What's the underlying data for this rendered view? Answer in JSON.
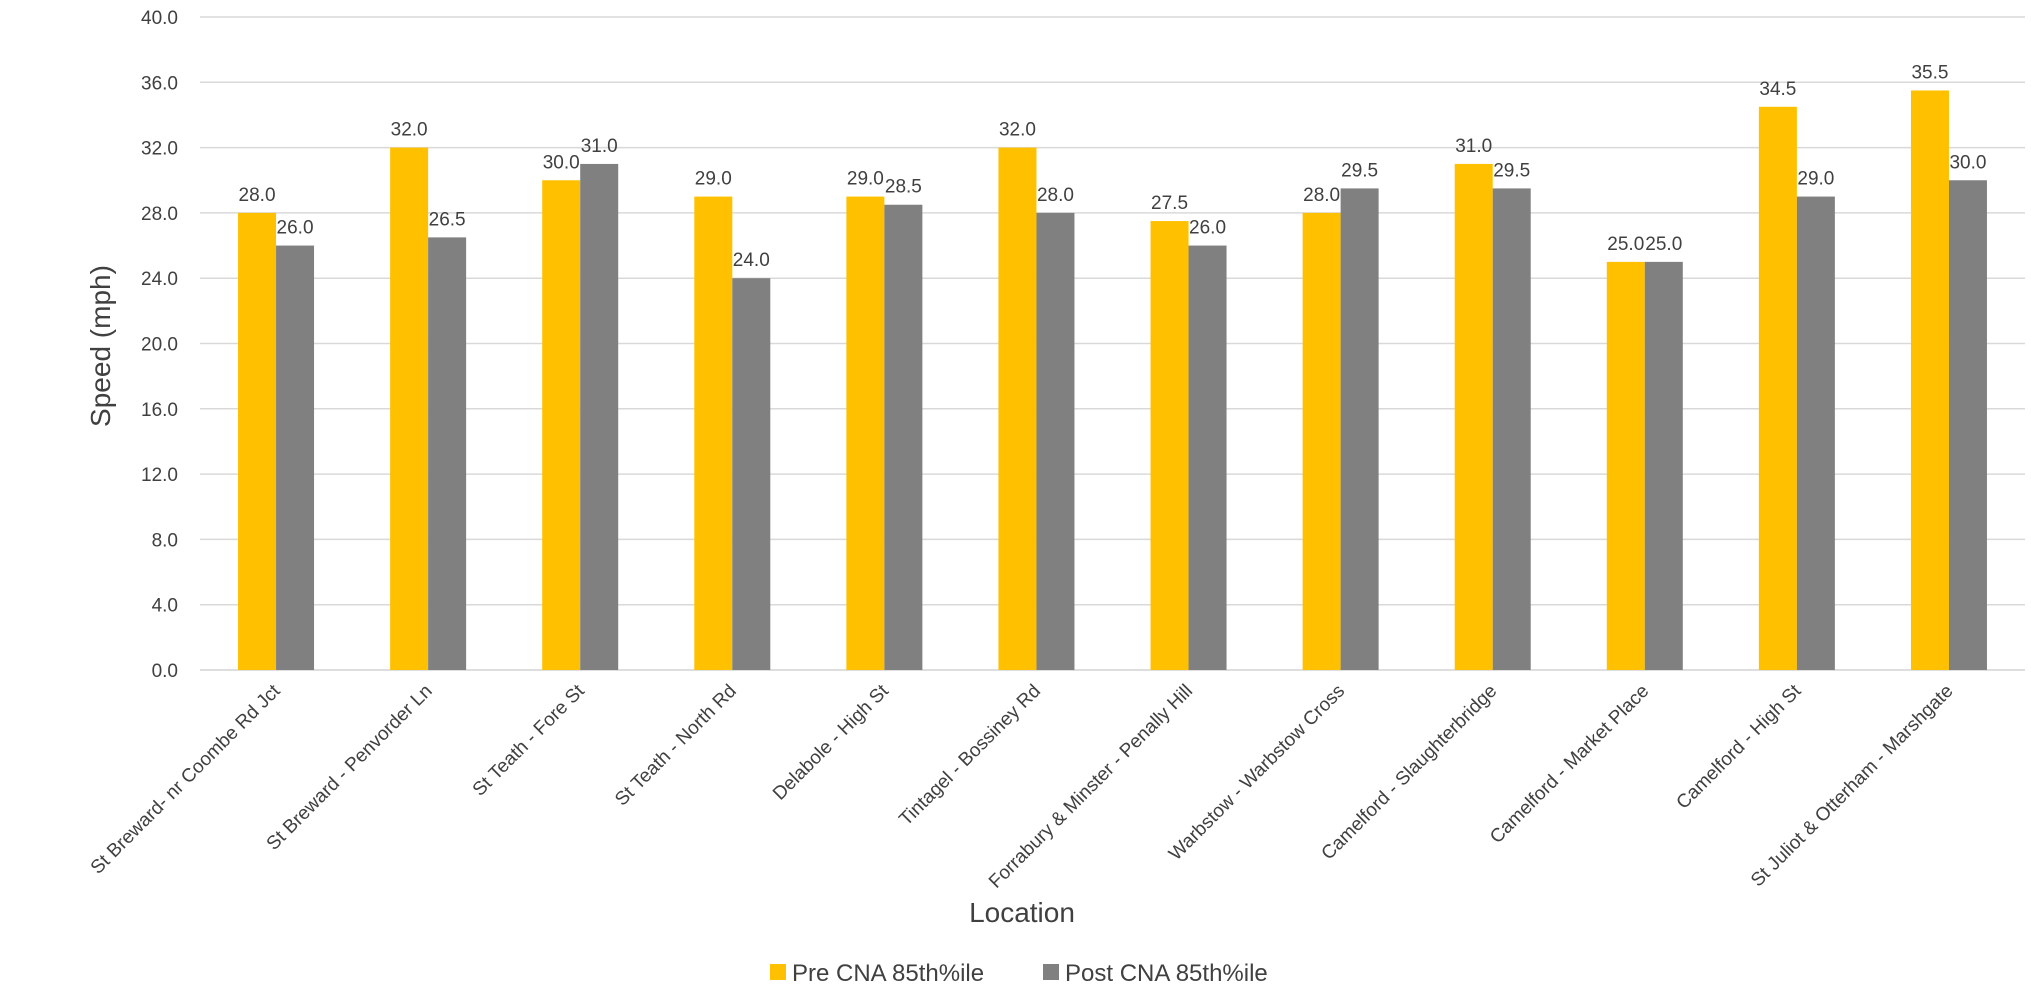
{
  "chart_data": {
    "type": "bar",
    "title": "",
    "xlabel": "Location",
    "ylabel": "Speed (mph)",
    "ylim": [
      0,
      40
    ],
    "yticks": [
      "0.0",
      "4.0",
      "8.0",
      "12.0",
      "16.0",
      "20.0",
      "24.0",
      "28.0",
      "32.0",
      "36.0",
      "40.0"
    ],
    "grid": true,
    "legend_position": "bottom",
    "categories": [
      "St Breward- nr Coombe Rd Jct",
      "St Breward - Penvorder Ln",
      "St Teath - Fore St",
      "St Teath - North Rd",
      "Delabole - High St",
      "Tintagel - Bossiney Rd",
      "Forrabury & Minster - Penally Hill",
      "Warbstow - Warbstow Cross",
      "Camelford - Slaughterbridge",
      "Camelford - Market Place",
      "Camelford - High St",
      "St Juliot & Otterham - Marshgate"
    ],
    "series": [
      {
        "name": "Pre CNA 85th%ile",
        "color": "#FFC000",
        "values": [
          28.0,
          32.0,
          30.0,
          29.0,
          29.0,
          32.0,
          27.5,
          28.0,
          31.0,
          25.0,
          34.5,
          35.5
        ],
        "labels": [
          "28.0",
          "32.0",
          "30.0",
          "29.0",
          "29.0",
          "32.0",
          "27.5",
          "28.0",
          "31.0",
          "25.0",
          "34.5",
          "35.5"
        ]
      },
      {
        "name": "Post CNA 85th%ile",
        "color": "#808080",
        "values": [
          26.0,
          26.5,
          31.0,
          24.0,
          28.5,
          28.0,
          26.0,
          29.5,
          29.5,
          25.0,
          29.0,
          30.0
        ],
        "labels": [
          "26.0",
          "26.5",
          "31.0",
          "24.0",
          "28.5",
          "28.0",
          "26.0",
          "29.5",
          "29.5",
          "25.0",
          "29.0",
          "30.0"
        ]
      }
    ]
  }
}
